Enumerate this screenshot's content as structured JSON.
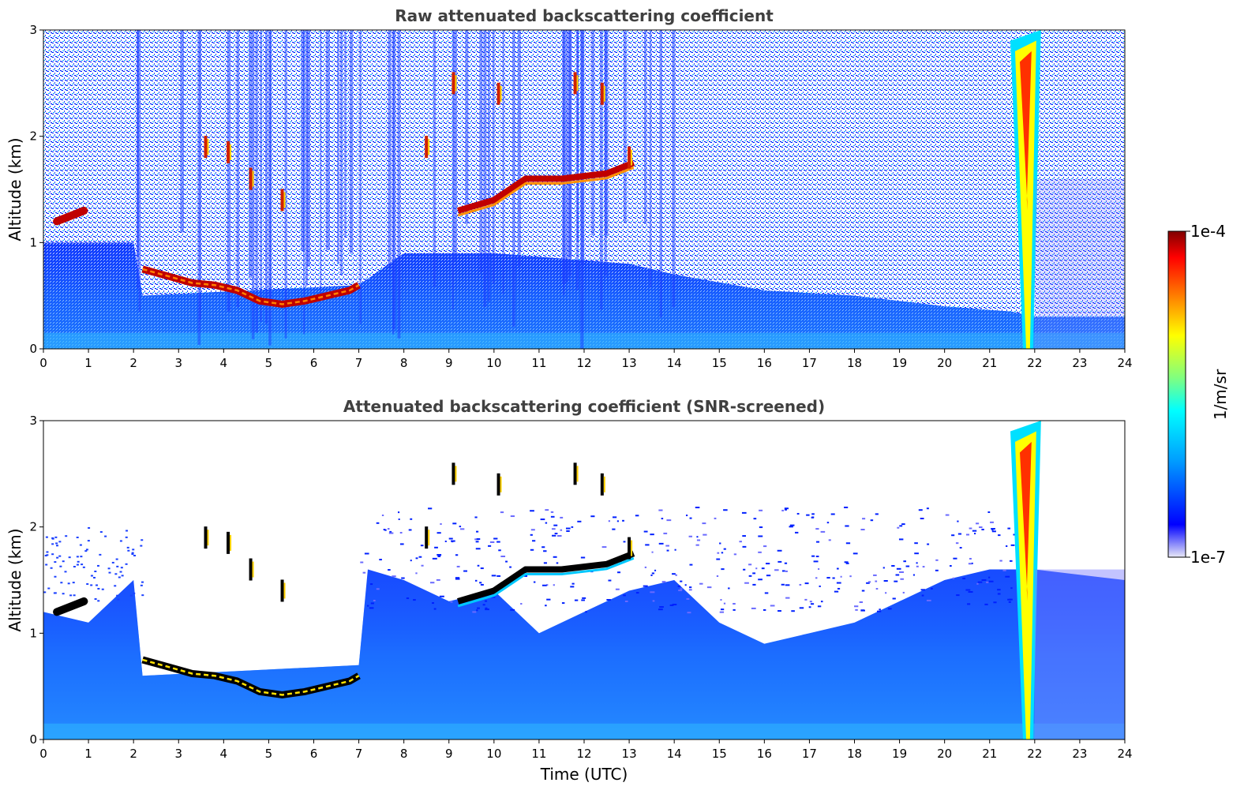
{
  "chart_data": [
    {
      "type": "heatmap",
      "title": "Raw attenuated backscattering coefficient",
      "xlabel": "",
      "ylabel": "Altitude (km)",
      "xlim": [
        0,
        24
      ],
      "ylim": [
        0,
        3
      ],
      "xticks": [
        "0",
        "1",
        "2",
        "3",
        "4",
        "5",
        "6",
        "7",
        "8",
        "9",
        "10",
        "11",
        "12",
        "13",
        "14",
        "15",
        "16",
        "17",
        "18",
        "19",
        "20",
        "21",
        "22",
        "23",
        "24"
      ],
      "yticks": [
        "0",
        "1",
        "2",
        "3"
      ],
      "screened": false
    },
    {
      "type": "heatmap",
      "title": "Attenuated backscattering coefficient (SNR-screened)",
      "xlabel": "Time (UTC)",
      "ylabel": "Altitude (km)",
      "xlim": [
        0,
        24
      ],
      "ylim": [
        0,
        3
      ],
      "xticks": [
        "0",
        "1",
        "2",
        "3",
        "4",
        "5",
        "6",
        "7",
        "8",
        "9",
        "10",
        "11",
        "12",
        "13",
        "14",
        "15",
        "16",
        "17",
        "18",
        "19",
        "20",
        "21",
        "22",
        "23",
        "24"
      ],
      "yticks": [
        "0",
        "1",
        "2",
        "3"
      ],
      "screened": true
    }
  ],
  "colorbar": {
    "label": "1/m/sr",
    "max_label": "1e-4",
    "min_label": "1e-7",
    "scale": "log",
    "colormap": "jet",
    "colors": [
      "#e8e8f6",
      "#0000ff",
      "#00a0ff",
      "#00ffff",
      "#80ff80",
      "#ffff00",
      "#ff8000",
      "#ff0000",
      "#800000"
    ]
  },
  "features": {
    "boundary_layer_top_km": [
      [
        2.2,
        0.75
      ],
      [
        2.8,
        0.68
      ],
      [
        3.3,
        0.62
      ],
      [
        3.8,
        0.6
      ],
      [
        4.3,
        0.55
      ],
      [
        4.8,
        0.45
      ],
      [
        5.3,
        0.42
      ],
      [
        5.8,
        0.45
      ],
      [
        6.3,
        0.5
      ],
      [
        6.8,
        0.55
      ],
      [
        7.0,
        0.6
      ]
    ],
    "early_cloud_km": [
      [
        0.3,
        1.2
      ],
      [
        0.9,
        1.3
      ]
    ],
    "mid_cloud_km": [
      [
        9.2,
        1.3
      ],
      [
        10.0,
        1.4
      ],
      [
        10.7,
        1.6
      ],
      [
        11.5,
        1.6
      ],
      [
        12.5,
        1.65
      ],
      [
        13.1,
        1.75
      ]
    ],
    "rain_event_utc": [
      21.6,
      22.0
    ]
  }
}
